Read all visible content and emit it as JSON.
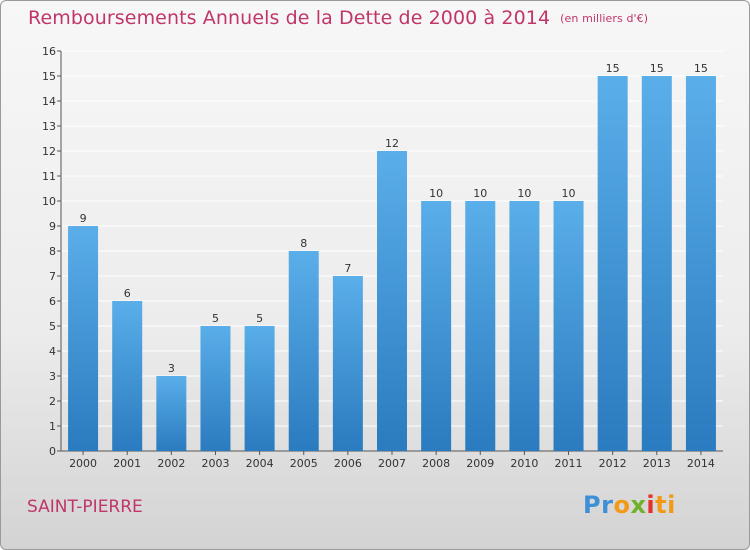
{
  "header": {
    "title": "Remboursements Annuels de la Dette de 2000 à 2014",
    "unit": "(en milliers d'€)"
  },
  "footer": {
    "town": "SAINT-PIERRE",
    "logo_letters": [
      "P",
      "r",
      "o",
      "x",
      "i",
      "ti"
    ]
  },
  "colors": {
    "accent": "#c0356a",
    "bar_top": "#5aaee9",
    "bar_bottom": "#2a7bbf",
    "grid": "#ffffff"
  },
  "chart_data": {
    "type": "bar",
    "categories": [
      "2000",
      "2001",
      "2002",
      "2003",
      "2004",
      "2005",
      "2006",
      "2007",
      "2008",
      "2009",
      "2010",
      "2011",
      "2012",
      "2013",
      "2014"
    ],
    "values": [
      9,
      6,
      3,
      5,
      5,
      8,
      7,
      12,
      10,
      10,
      10,
      10,
      15,
      15,
      15
    ],
    "title": "Remboursements Annuels de la Dette de 2000 à 2014",
    "xlabel": "",
    "ylabel": "",
    "ylim": [
      0,
      16
    ],
    "yticks": [
      0,
      1,
      2,
      3,
      4,
      5,
      6,
      7,
      8,
      9,
      10,
      11,
      12,
      13,
      14,
      15,
      16
    ],
    "grid": true,
    "data_labels": true
  }
}
